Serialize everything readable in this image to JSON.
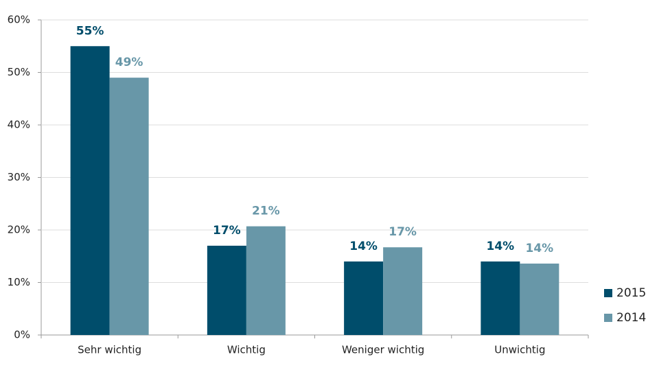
{
  "chart_data": {
    "type": "bar",
    "categories": [
      "Sehr wichtig",
      "Wichtig",
      "Weniger wichtig",
      "Unwichtig"
    ],
    "series": [
      {
        "name": "2015",
        "color": "#004d6b",
        "values": [
          55,
          17,
          14,
          14
        ],
        "value_labels": [
          "55%",
          "17%",
          "14%",
          "14%"
        ]
      },
      {
        "name": "2014",
        "color": "#6897a8",
        "values": [
          49,
          20.7,
          16.7,
          13.6
        ],
        "value_labels": [
          "49%",
          "21%",
          "17%",
          "14%"
        ]
      }
    ],
    "ylim": [
      0,
      60
    ],
    "yticks": [
      {
        "value": 0,
        "label": "0%"
      },
      {
        "value": 10,
        "label": "10%"
      },
      {
        "value": 20,
        "label": "20%"
      },
      {
        "value": 30,
        "label": "30%"
      },
      {
        "value": 40,
        "label": "40%"
      },
      {
        "value": 50,
        "label": "50%"
      },
      {
        "value": 60,
        "label": "60%"
      }
    ],
    "grid": true,
    "legend": "right"
  }
}
